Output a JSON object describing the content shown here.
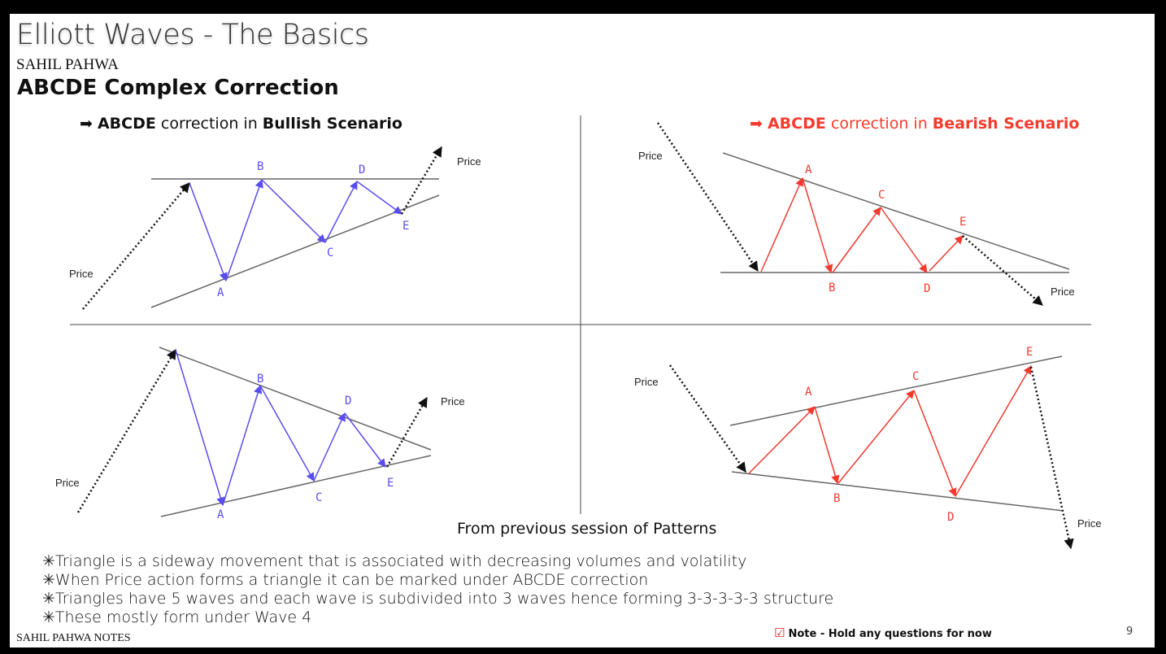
{
  "header": {
    "title": "Elliott Waves - The Basics",
    "author": "SAHIL PAHWA",
    "subtitle": "ABCDE Complex Correction"
  },
  "bullish_heading": {
    "arrow": "➡",
    "bold1": "ABCDE",
    "mid": " correction in ",
    "bold2": "Bullish Scenario"
  },
  "bearish_heading": {
    "arrow": "➡",
    "bold1": "ABCDE",
    "mid": " correction in ",
    "bold2": "Bearish Scenario"
  },
  "colors": {
    "bullish": "#5a4df0",
    "bearish": "#f03a30",
    "guide": "#666666",
    "dotted": "#111111"
  },
  "price_label": "Price",
  "diagrams": {
    "bull_top": {
      "labels": [
        "A",
        "B",
        "C",
        "D",
        "E"
      ],
      "price_labels": [
        "Price",
        "Price"
      ]
    },
    "bear_top": {
      "labels": [
        "A",
        "B",
        "C",
        "D",
        "E"
      ],
      "price_labels": [
        "Price",
        "Price"
      ]
    },
    "bull_bottom": {
      "labels": [
        "A",
        "B",
        "C",
        "D",
        "E"
      ],
      "price_labels": [
        "Price",
        "Price"
      ]
    },
    "bear_bottom": {
      "labels": [
        "A",
        "B",
        "C",
        "D",
        "E"
      ],
      "price_labels": [
        "Price",
        "Price"
      ]
    }
  },
  "caption": "From previous session of Patterns",
  "bullets": [
    "✳Triangle is a sideway movement that is associated with decreasing volumes and volatility",
    "✳When Price action forms a triangle it can be marked under ABCDE correction",
    "✳Triangles have 5 waves and each wave is subdivided into 3 waves hence forming 3-3-3-3-3 structure",
    "✳These mostly form under Wave 4"
  ],
  "footer": "SAHIL PAHWA NOTES",
  "note": {
    "icon": "checkbox-icon",
    "text": "Note - Hold any questions for now"
  },
  "page_number": "9"
}
